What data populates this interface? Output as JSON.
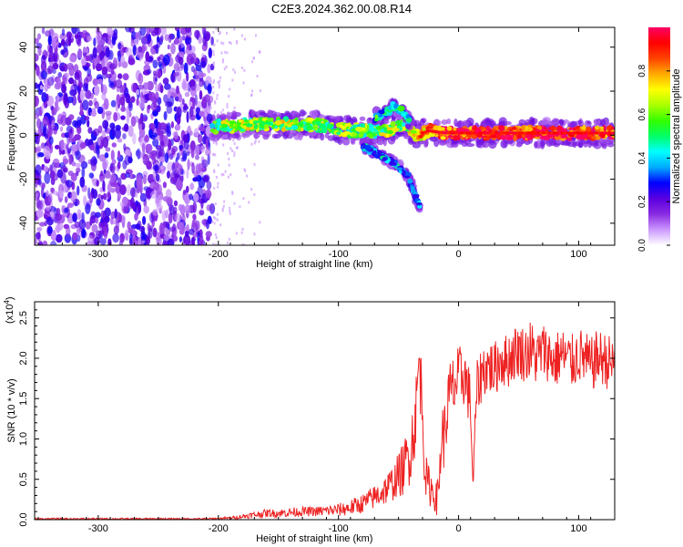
{
  "title": "C2E3.2024.362.00.08.R14",
  "chart_data": [
    {
      "type": "heatmap",
      "xlabel": "Height of straight line (km)",
      "ylabel": "Frequency (Hz)",
      "xlim": [
        -353,
        130
      ],
      "ylim": [
        -50,
        49
      ],
      "x_ticks": [
        -300,
        -200,
        -100,
        0,
        100
      ],
      "y_ticks": [
        -40,
        -20,
        0,
        20,
        40
      ],
      "colorbar": {
        "label": "Normalized spectral amplitude",
        "range": [
          0.0,
          1.0
        ],
        "ticks": [
          0.0,
          0.2,
          0.4,
          0.6,
          0.8
        ],
        "colors": [
          "#ffffff",
          "#cc99ff",
          "#8a2be2",
          "#5a00e0",
          "#0000ff",
          "#00aaff",
          "#00ffff",
          "#00ff66",
          "#33ff00",
          "#aaff00",
          "#ffff00",
          "#ffaa00",
          "#ff4400",
          "#ff0000",
          "#ff0066"
        ]
      },
      "noise_region_x": [
        -353,
        -205
      ],
      "signal_track": {
        "x": [
          -205,
          -190,
          -170,
          -150,
          -130,
          -110,
          -90,
          -75,
          -60,
          -50,
          -45,
          -35,
          -25,
          -10,
          0,
          20,
          40,
          60,
          80,
          100,
          130
        ],
        "freq": [
          4,
          4,
          5,
          5,
          5,
          4,
          2,
          2,
          2,
          4,
          6,
          0,
          2,
          1,
          1,
          1,
          1,
          1,
          1,
          1,
          1
        ],
        "amplitude": [
          0.55,
          0.6,
          0.6,
          0.62,
          0.6,
          0.58,
          0.55,
          0.55,
          0.6,
          0.6,
          0.55,
          0.7,
          0.85,
          0.9,
          0.9,
          0.92,
          0.92,
          0.92,
          0.92,
          0.92,
          0.85
        ]
      },
      "branch_track": {
        "x": [
          -80,
          -65,
          -55,
          -48,
          -42,
          -38,
          -35,
          -32
        ],
        "freq": [
          -5,
          -9,
          -12,
          -15,
          -19,
          -24,
          -29,
          -33
        ]
      },
      "secondary_track": {
        "x": [
          -70,
          -60,
          -55,
          -50,
          -45,
          -40
        ],
        "freq": [
          8,
          10,
          13,
          12,
          9,
          6
        ]
      }
    },
    {
      "type": "line",
      "xlabel": "Height of straight line (km)",
      "ylabel": "SNR (10 * v/v)",
      "y_multiplier": "(x10",
      "y_multiplier_exp": "4",
      "y_multiplier_close": ")",
      "xlim": [
        -353,
        130
      ],
      "ylim": [
        0.0,
        2.7
      ],
      "x_ticks": [
        -300,
        -200,
        -100,
        0,
        100
      ],
      "y_ticks": [
        0.0,
        0.5,
        1.0,
        1.5,
        2.0,
        2.5
      ],
      "series": [
        {
          "color": "#ee2222",
          "x": [
            -353,
            -300,
            -250,
            -210,
            -190,
            -180,
            -170,
            -160,
            -150,
            -140,
            -130,
            -120,
            -110,
            -100,
            -90,
            -80,
            -70,
            -60,
            -55,
            -50,
            -45,
            -40,
            -38,
            -35,
            -33,
            -30,
            -28,
            -26,
            -23,
            -20,
            -18,
            -16,
            -14,
            -12,
            -10,
            -8,
            -5,
            0,
            5,
            10,
            12,
            15,
            20,
            25,
            30,
            35,
            40,
            45,
            50,
            55,
            60,
            65,
            70,
            75,
            80,
            85,
            90,
            95,
            100,
            105,
            110,
            115,
            120,
            125,
            130
          ],
          "y": [
            0.01,
            0.01,
            0.01,
            0.01,
            0.02,
            0.04,
            0.06,
            0.08,
            0.08,
            0.09,
            0.1,
            0.1,
            0.11,
            0.12,
            0.15,
            0.2,
            0.28,
            0.38,
            0.45,
            0.55,
            0.65,
            0.9,
            1.05,
            1.4,
            2.0,
            1.4,
            0.6,
            0.45,
            0.4,
            0.3,
            0.25,
            0.5,
            1.1,
            1.0,
            1.3,
            1.5,
            1.6,
            1.75,
            1.8,
            1.45,
            0.4,
            1.6,
            1.85,
            1.9,
            1.85,
            2.0,
            1.95,
            2.05,
            2.1,
            2.05,
            2.1,
            2.0,
            2.1,
            2.05,
            1.95,
            2.05,
            2.0,
            1.95,
            2.05,
            2.0,
            1.9,
            2.0,
            2.0,
            1.95,
            1.9
          ],
          "noise_amplitude": [
            0.01,
            0.01,
            0.01,
            0.01,
            0.015,
            0.03,
            0.04,
            0.05,
            0.05,
            0.06,
            0.06,
            0.06,
            0.07,
            0.08,
            0.1,
            0.12,
            0.15,
            0.2,
            0.22,
            0.28,
            0.35,
            0.45,
            0.45,
            0.5,
            0.45,
            0.45,
            0.3,
            0.25,
            0.25,
            0.2,
            0.2,
            0.3,
            0.4,
            0.4,
            0.45,
            0.45,
            0.45,
            0.4,
            0.4,
            0.35,
            0.1,
            0.35,
            0.35,
            0.35,
            0.35,
            0.35,
            0.35,
            0.35,
            0.35,
            0.35,
            0.4,
            0.35,
            0.35,
            0.35,
            0.35,
            0.35,
            0.35,
            0.35,
            0.35,
            0.35,
            0.35,
            0.35,
            0.35,
            0.35,
            0.35
          ]
        }
      ]
    }
  ]
}
